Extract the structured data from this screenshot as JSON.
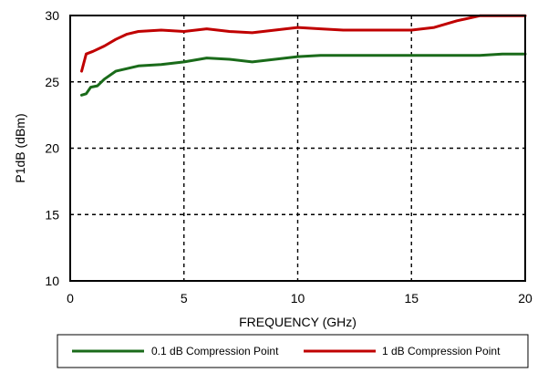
{
  "chart_data": {
    "type": "line",
    "xlabel": "FREQUENCY (GHz)",
    "ylabel": "P1dB (dBm)",
    "xlim": [
      0,
      20
    ],
    "ylim": [
      10,
      30
    ],
    "x_ticks": [
      0,
      5,
      10,
      15,
      20
    ],
    "y_ticks": [
      10,
      15,
      20,
      25,
      30
    ],
    "grid": "dashed, both axes",
    "legend_position": "bottom-center, below plot",
    "series": [
      {
        "name": "0.1 dB Compression Point",
        "color": "#1a6b1a",
        "points": [
          [
            0.5,
            24.0
          ],
          [
            0.7,
            24.1
          ],
          [
            0.9,
            24.6
          ],
          [
            1.2,
            24.7
          ],
          [
            1.5,
            25.2
          ],
          [
            2.0,
            25.8
          ],
          [
            2.5,
            26.0
          ],
          [
            3.0,
            26.2
          ],
          [
            4.0,
            26.3
          ],
          [
            5.0,
            26.5
          ],
          [
            6.0,
            26.8
          ],
          [
            7.0,
            26.7
          ],
          [
            8.0,
            26.5
          ],
          [
            9.0,
            26.7
          ],
          [
            10.0,
            26.9
          ],
          [
            11.0,
            27.0
          ],
          [
            12.0,
            27.0
          ],
          [
            13.0,
            27.0
          ],
          [
            14.0,
            27.0
          ],
          [
            15.0,
            27.0
          ],
          [
            16.0,
            27.0
          ],
          [
            17.0,
            27.0
          ],
          [
            18.0,
            27.0
          ],
          [
            19.0,
            27.1
          ],
          [
            20.0,
            27.1
          ]
        ]
      },
      {
        "name": "1 dB Compression Point",
        "color": "#c00000",
        "points": [
          [
            0.5,
            25.8
          ],
          [
            0.7,
            27.1
          ],
          [
            1.0,
            27.3
          ],
          [
            1.5,
            27.7
          ],
          [
            2.0,
            28.2
          ],
          [
            2.5,
            28.6
          ],
          [
            3.0,
            28.8
          ],
          [
            4.0,
            28.9
          ],
          [
            5.0,
            28.8
          ],
          [
            6.0,
            29.0
          ],
          [
            7.0,
            28.8
          ],
          [
            8.0,
            28.7
          ],
          [
            9.0,
            28.9
          ],
          [
            10.0,
            29.1
          ],
          [
            11.0,
            29.0
          ],
          [
            12.0,
            28.9
          ],
          [
            13.0,
            28.9
          ],
          [
            14.0,
            28.9
          ],
          [
            15.0,
            28.9
          ],
          [
            16.0,
            29.1
          ],
          [
            17.0,
            29.6
          ],
          [
            18.0,
            30.0
          ],
          [
            19.0,
            30.0
          ],
          [
            20.0,
            30.0
          ]
        ]
      }
    ]
  }
}
